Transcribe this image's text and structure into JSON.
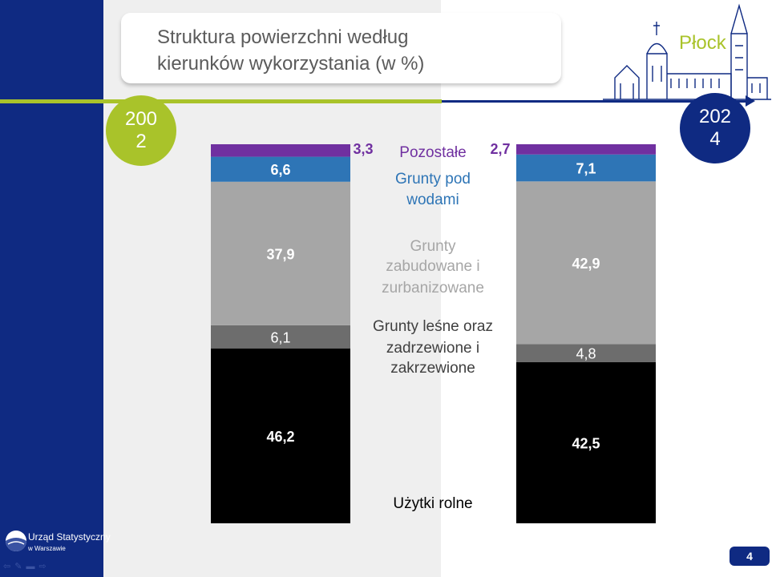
{
  "title": {
    "line1": "Struktura powierzchni według",
    "line2": "kierunków wykorzystania (w %)"
  },
  "city": "Płock",
  "years": {
    "left": [
      "200",
      "2"
    ],
    "right": [
      "202",
      "4"
    ]
  },
  "logo": {
    "line1": "Urząd Statystyczny",
    "line2": "w Warszawie"
  },
  "page_number": "4",
  "colors": {
    "sidebar": "#0f2a82",
    "accent_green": "#a9c32a",
    "pozostale": "#7030a0",
    "grunty_pod_wodami": "#2e75b6",
    "zabudowane": "#a6a6a6",
    "lesne": "#6d6d6d",
    "uzytki_rolne": "#000000"
  },
  "chart_data": {
    "type": "bar",
    "stacked": true,
    "categories": [
      "2002",
      "2024"
    ],
    "series": [
      {
        "name": "Użytki rolne",
        "values": [
          46.2,
          42.5
        ],
        "labels": [
          "46,2",
          "42,5"
        ],
        "color": "#000000"
      },
      {
        "name": "Grunty leśne oraz zadrzewione i zakrzewione",
        "values": [
          6.1,
          4.8
        ],
        "labels": [
          "6,1",
          "4,8"
        ],
        "color": "#6d6d6d"
      },
      {
        "name": "Grunty zabudowane i zurbanizowane",
        "values": [
          37.9,
          42.9
        ],
        "labels": [
          "37,9",
          "42,9"
        ],
        "color": "#a6a6a6"
      },
      {
        "name": "Grunty pod wodami",
        "values": [
          6.6,
          7.1
        ],
        "labels": [
          "6,6",
          "7,1"
        ],
        "color": "#2e75b6"
      },
      {
        "name": "Pozostałe",
        "values": [
          3.3,
          2.7
        ],
        "labels": [
          "3,3",
          "2,7"
        ],
        "color": "#7030a0"
      }
    ],
    "legend_lines": [
      {
        "series": "Pozostałe",
        "lines": [
          "Pozostałe"
        ],
        "color": "#7030a0"
      },
      {
        "series": "Grunty pod wodami",
        "lines": [
          "Grunty pod",
          "wodami"
        ],
        "color": "#2e75b6"
      },
      {
        "series": "Grunty zabudowane i zurbanizowane",
        "lines": [
          "Grunty",
          "zabudowane i",
          "zurbanizowane"
        ],
        "color": "#a6a6a6"
      },
      {
        "series": "Grunty leśne oraz zadrzewione i zakrzewione",
        "lines": [
          "Grunty leśne oraz",
          "zadrzewione i",
          "zakrzewione"
        ],
        "color": "#404040"
      },
      {
        "series": "Użytki rolne",
        "lines": [
          "Użytki rolne"
        ],
        "color": "#000000"
      }
    ],
    "ylim": [
      0,
      100
    ],
    "legend_placement": "between bars",
    "grid": false
  }
}
